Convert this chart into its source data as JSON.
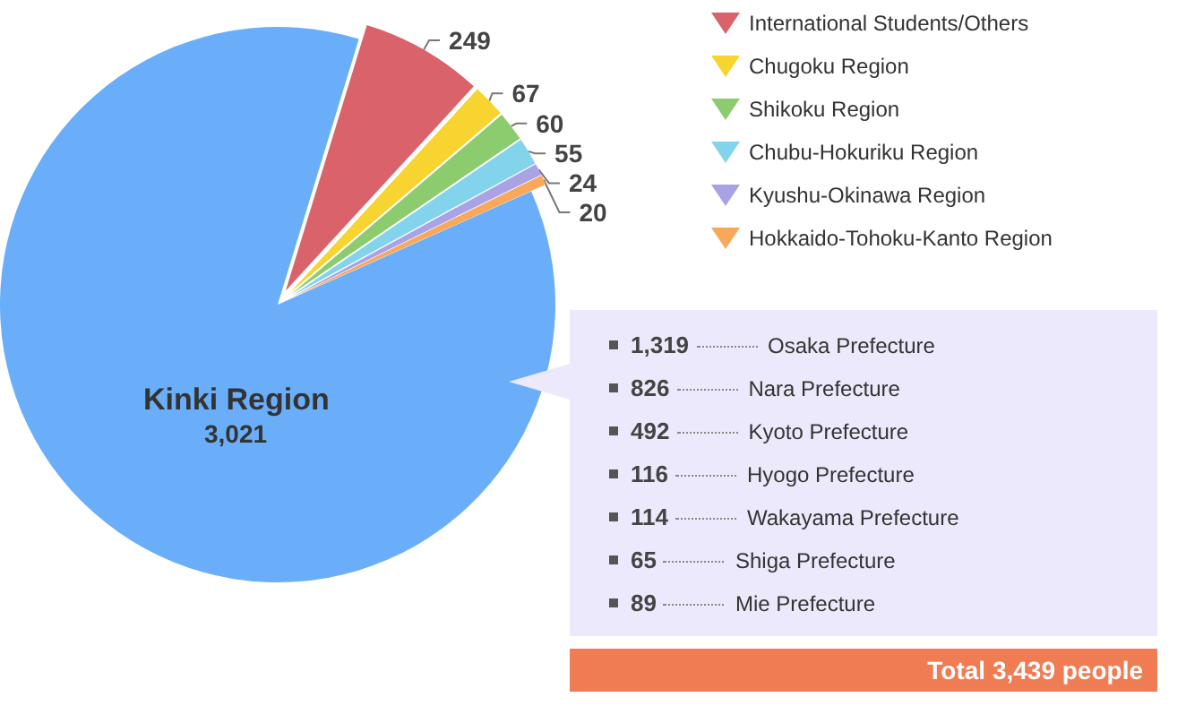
{
  "chart_data": {
    "type": "pie",
    "categories": [
      "International Students/Others",
      "Chugoku Region",
      "Shikoku Region",
      "Chubu-Hokuriku Region",
      "Kyushu-Okinawa Region",
      "Hokkaido-Tohoku-Kanto Region",
      "Kinki Region"
    ],
    "values": [
      249,
      67,
      60,
      55,
      24,
      20,
      3021
    ],
    "colors": [
      "#d9626b",
      "#f7d42f",
      "#8ccc6f",
      "#84d3ec",
      "#a9a3e6",
      "#f9a75a",
      "#6aaef9"
    ],
    "value_labels": [
      "249",
      "67",
      "60",
      "55",
      "24",
      "20",
      "3,021"
    ],
    "legend": "right",
    "annotations": [
      "1,319 Osaka Prefecture",
      "826 Nara Prefecture",
      "492 Kyoto Prefecture",
      "116 Hyogo Prefecture",
      "114 Wakayama Prefecture",
      "65 Shiga Prefecture",
      "89 Mie Prefecture",
      "Total 3,439 people"
    ]
  }
}
